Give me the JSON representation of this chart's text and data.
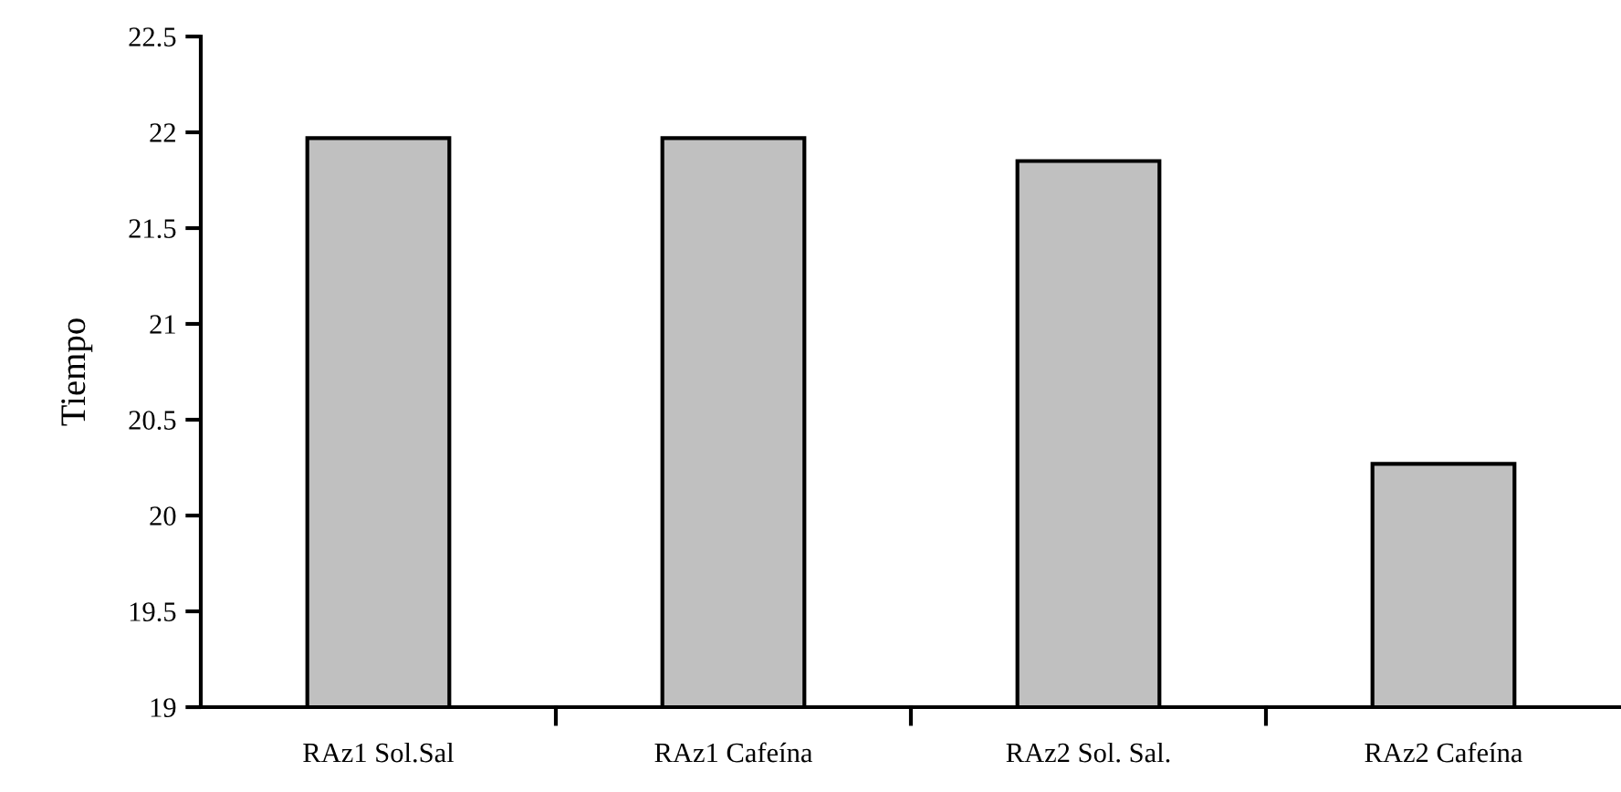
{
  "chart_data": {
    "type": "bar",
    "ylabel": "Tiempo",
    "categories": [
      "RAz1 Sol.Sal",
      "RAz1 Cafeína",
      "RAz2 Sol. Sal.",
      "RAz2 Cafeína"
    ],
    "values": [
      21.97,
      21.97,
      21.85,
      20.27
    ],
    "color": "#c0c0c0",
    "ylim": [
      19,
      22.5
    ],
    "yticks": [
      19,
      19.5,
      20,
      20.5,
      21,
      21.5,
      22,
      22.5
    ],
    "grid": false,
    "legend": false
  }
}
